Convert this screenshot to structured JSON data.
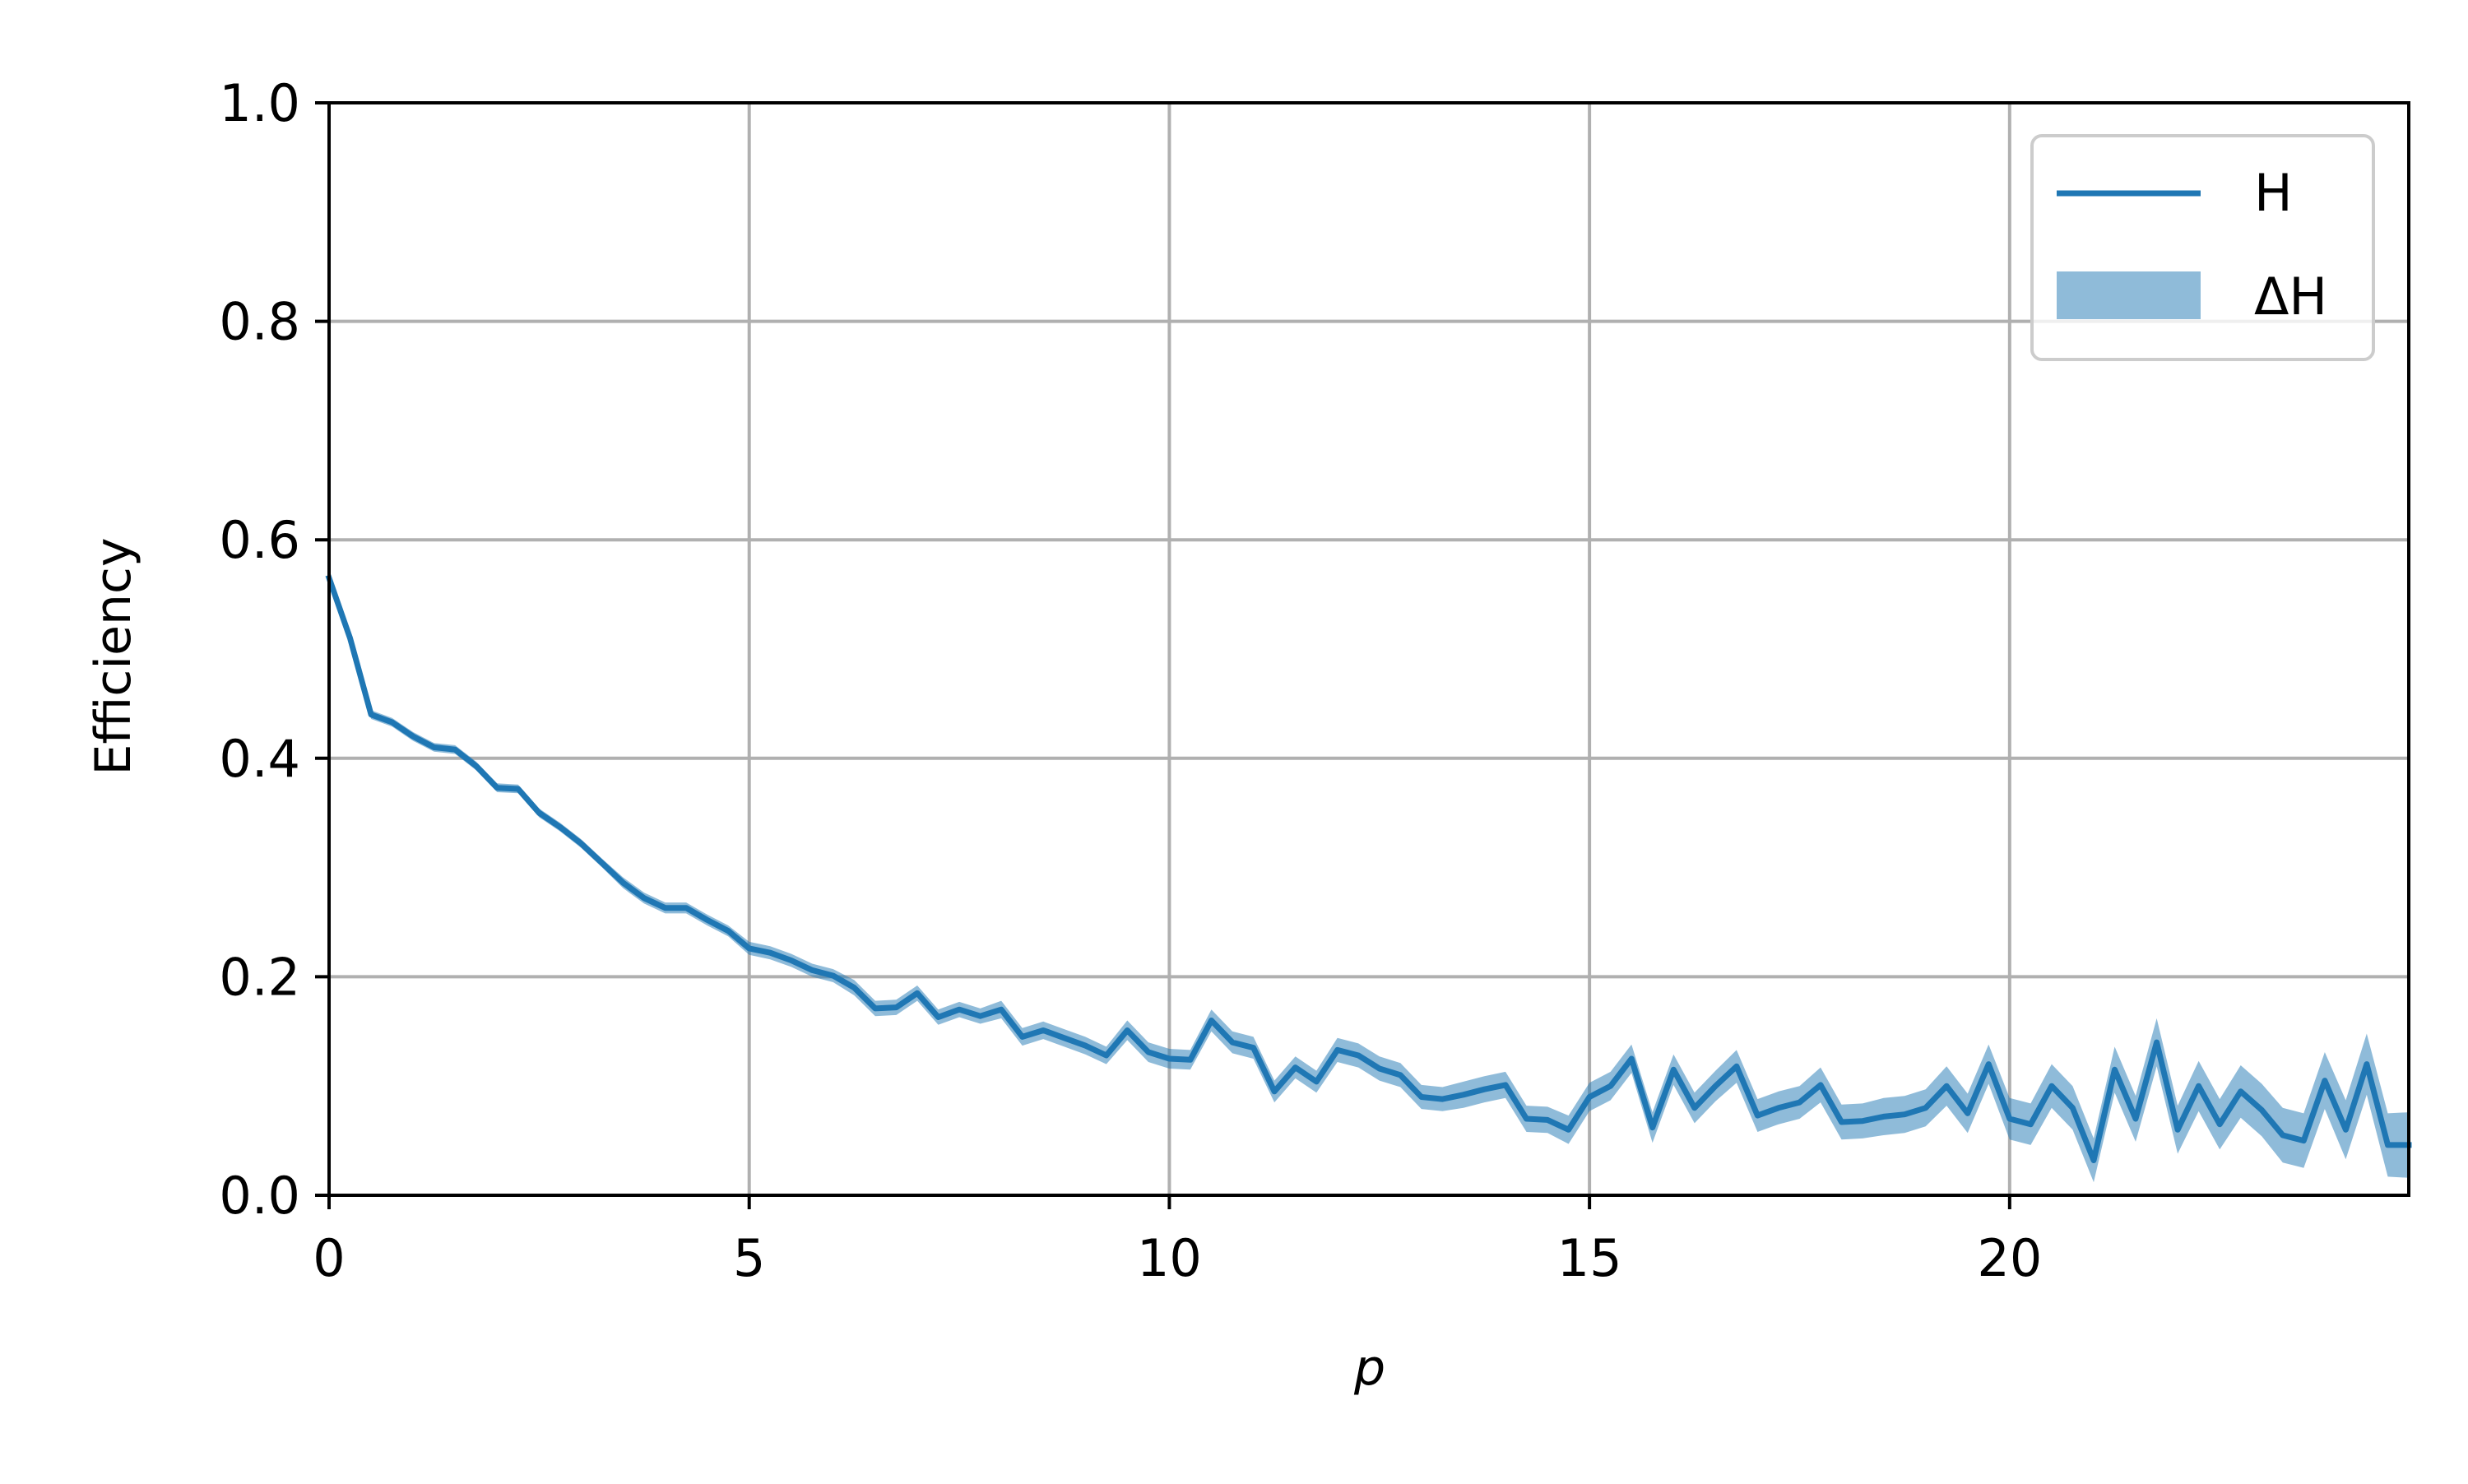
{
  "chart_data": {
    "type": "line",
    "title": "",
    "xlabel": "p",
    "ylabel": "Efficiency",
    "xlim": [
      0,
      24.75
    ],
    "ylim": [
      0.0,
      1.0
    ],
    "xticks": [
      0,
      5,
      10,
      15,
      20
    ],
    "xtick_labels": [
      "0",
      "5",
      "10",
      "15",
      "20"
    ],
    "yticks": [
      0.0,
      0.2,
      0.4,
      0.6,
      0.8,
      1.0
    ],
    "ytick_labels": [
      "0.0",
      "0.2",
      "0.4",
      "0.6",
      "0.8",
      "1.0"
    ],
    "grid": true,
    "legend_position": "top-right",
    "legend": [
      {
        "label": "H",
        "kind": "line"
      },
      {
        "label": "ΔH",
        "kind": "band"
      }
    ],
    "colors": {
      "line": "#1f77b4",
      "band": "#1f77b4",
      "grid": "#b0b0b0"
    },
    "series": [
      {
        "name": "H",
        "x": [
          0,
          0.25,
          0.5,
          0.75,
          1.0,
          1.25,
          1.5,
          1.75,
          2.0,
          2.25,
          2.5,
          2.75,
          3.0,
          3.25,
          3.5,
          3.75,
          4.0,
          4.25,
          4.5,
          4.75,
          5.0,
          5.25,
          5.5,
          5.75,
          6.0,
          6.25,
          6.5,
          6.75,
          7.0,
          7.25,
          7.5,
          7.75,
          8.0,
          8.25,
          8.5,
          8.75,
          9.0,
          9.25,
          9.5,
          9.75,
          10.0,
          10.25,
          10.5,
          10.75,
          11.0,
          11.25,
          11.5,
          11.75,
          12.0,
          12.25,
          12.5,
          12.75,
          13.0,
          13.25,
          13.5,
          13.75,
          14.0,
          14.25,
          14.5,
          14.75,
          15.0,
          15.25,
          15.5,
          15.75,
          16.0,
          16.25,
          16.5,
          16.75,
          17.0,
          17.25,
          17.5,
          17.75,
          18.0,
          18.25,
          18.5,
          18.75,
          19.0,
          19.25,
          19.5,
          19.75,
          20.0,
          20.25,
          20.5,
          20.75,
          21.0,
          21.25,
          21.5,
          21.75,
          22.0,
          22.25,
          22.5,
          22.75,
          23.0,
          23.25,
          23.5,
          23.75,
          24.0,
          24.25,
          24.5,
          24.75
        ],
        "y": [
          0.565,
          0.51,
          0.44,
          0.433,
          0.42,
          0.41,
          0.408,
          0.393,
          0.373,
          0.372,
          0.35,
          0.337,
          0.322,
          0.304,
          0.286,
          0.272,
          0.263,
          0.263,
          0.252,
          0.242,
          0.226,
          0.222,
          0.215,
          0.206,
          0.201,
          0.19,
          0.171,
          0.172,
          0.185,
          0.163,
          0.17,
          0.164,
          0.17,
          0.145,
          0.151,
          0.144,
          0.137,
          0.128,
          0.151,
          0.131,
          0.125,
          0.124,
          0.16,
          0.14,
          0.135,
          0.095,
          0.117,
          0.104,
          0.133,
          0.128,
          0.116,
          0.11,
          0.09,
          0.088,
          0.092,
          0.097,
          0.101,
          0.07,
          0.069,
          0.06,
          0.09,
          0.1,
          0.125,
          0.062,
          0.115,
          0.08,
          0.1,
          0.118,
          0.073,
          0.08,
          0.085,
          0.101,
          0.067,
          0.068,
          0.072,
          0.074,
          0.08,
          0.1,
          0.075,
          0.12,
          0.07,
          0.065,
          0.1,
          0.08,
          0.032,
          0.115,
          0.07,
          0.14,
          0.06,
          0.1,
          0.065,
          0.095,
          0.078,
          0.055,
          0.05,
          0.105,
          0.06,
          0.12,
          0.046,
          0.046
        ],
        "delta": [
          0.004,
          0.004,
          0.004,
          0.004,
          0.004,
          0.004,
          0.004,
          0.004,
          0.004,
          0.004,
          0.004,
          0.004,
          0.004,
          0.004,
          0.005,
          0.005,
          0.005,
          0.005,
          0.005,
          0.005,
          0.006,
          0.006,
          0.006,
          0.006,
          0.006,
          0.007,
          0.007,
          0.007,
          0.007,
          0.007,
          0.007,
          0.007,
          0.008,
          0.008,
          0.008,
          0.008,
          0.008,
          0.008,
          0.009,
          0.009,
          0.009,
          0.009,
          0.01,
          0.01,
          0.01,
          0.01,
          0.01,
          0.01,
          0.011,
          0.011,
          0.011,
          0.011,
          0.011,
          0.011,
          0.012,
          0.012,
          0.012,
          0.012,
          0.012,
          0.013,
          0.013,
          0.013,
          0.013,
          0.014,
          0.014,
          0.014,
          0.014,
          0.015,
          0.015,
          0.015,
          0.015,
          0.016,
          0.016,
          0.016,
          0.017,
          0.017,
          0.017,
          0.018,
          0.018,
          0.018,
          0.019,
          0.019,
          0.02,
          0.02,
          0.02,
          0.021,
          0.021,
          0.022,
          0.022,
          0.023,
          0.023,
          0.024,
          0.024,
          0.025,
          0.025,
          0.026,
          0.027,
          0.028,
          0.029,
          0.03
        ]
      }
    ]
  }
}
